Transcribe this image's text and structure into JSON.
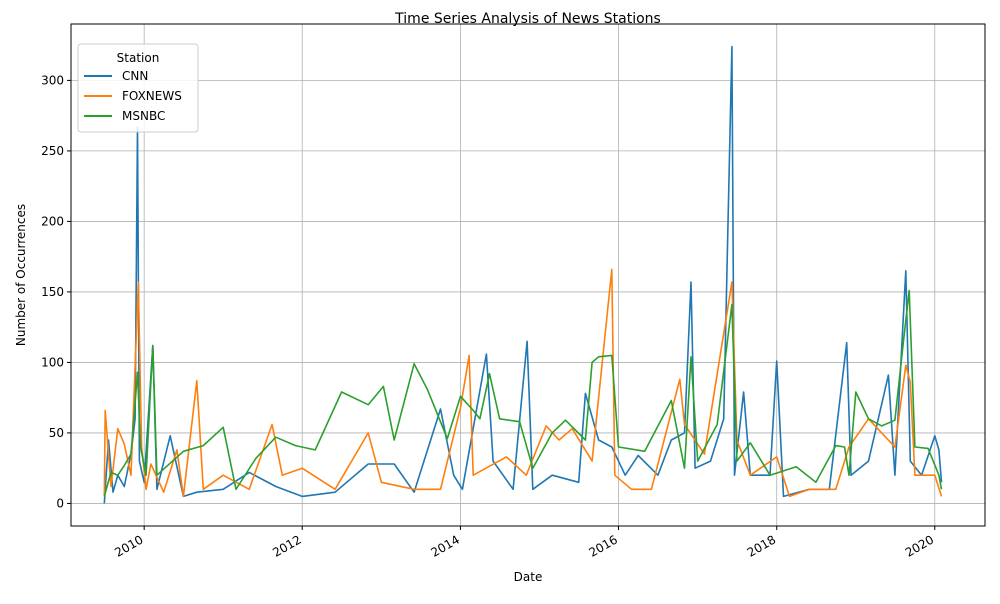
{
  "chart_data": {
    "type": "line",
    "title": "Time Series Analysis of News Stations",
    "xlabel": "Date",
    "ylabel": "Number of Occurrences",
    "x_axis_kind": "date",
    "xlim": [
      "2009-01-28",
      "2020-08-20"
    ],
    "ylim": [
      -16,
      340
    ],
    "x_ticks": [
      "2010",
      "2012",
      "2014",
      "2016",
      "2018",
      "2020"
    ],
    "x_tick_dates": [
      "2010-01-01",
      "2012-01-01",
      "2014-01-01",
      "2016-01-01",
      "2018-01-01",
      "2020-01-01"
    ],
    "y_ticks": [
      0,
      50,
      100,
      150,
      200,
      250,
      300
    ],
    "grid": true,
    "legend": {
      "title": "Station",
      "placement": "top-left"
    },
    "series": [
      {
        "name": "CNN",
        "color": "#1f77b4",
        "points": [
          [
            "2009-07-01",
            0
          ],
          [
            "2009-07-20",
            45
          ],
          [
            "2009-08-10",
            8
          ],
          [
            "2009-09-01",
            20
          ],
          [
            "2009-10-01",
            12
          ],
          [
            "2009-11-01",
            35
          ],
          [
            "2009-11-20",
            60
          ],
          [
            "2009-12-01",
            267
          ],
          [
            "2009-12-10",
            30
          ],
          [
            "2010-01-01",
            15
          ],
          [
            "2010-02-10",
            112
          ],
          [
            "2010-03-01",
            10
          ],
          [
            "2010-05-01",
            48
          ],
          [
            "2010-07-01",
            5
          ],
          [
            "2010-09-01",
            8
          ],
          [
            "2011-01-01",
            10
          ],
          [
            "2011-05-01",
            22
          ],
          [
            "2011-09-01",
            12
          ],
          [
            "2012-01-01",
            5
          ],
          [
            "2012-06-01",
            8
          ],
          [
            "2012-11-01",
            28
          ],
          [
            "2013-03-01",
            28
          ],
          [
            "2013-06-01",
            8
          ],
          [
            "2013-10-01",
            67
          ],
          [
            "2013-12-01",
            20
          ],
          [
            "2014-01-10",
            10
          ],
          [
            "2014-05-01",
            106
          ],
          [
            "2014-06-01",
            30
          ],
          [
            "2014-09-01",
            10
          ],
          [
            "2014-11-05",
            115
          ],
          [
            "2014-12-01",
            10
          ],
          [
            "2015-03-01",
            20
          ],
          [
            "2015-07-01",
            15
          ],
          [
            "2015-08-01",
            78
          ],
          [
            "2015-10-01",
            45
          ],
          [
            "2015-12-01",
            40
          ],
          [
            "2016-02-01",
            20
          ],
          [
            "2016-04-01",
            34
          ],
          [
            "2016-07-01",
            20
          ],
          [
            "2016-09-01",
            45
          ],
          [
            "2016-11-01",
            50
          ],
          [
            "2016-12-01",
            157
          ],
          [
            "2016-12-20",
            25
          ],
          [
            "2017-03-01",
            30
          ],
          [
            "2017-05-01",
            60
          ],
          [
            "2017-06-08",
            324
          ],
          [
            "2017-06-20",
            20
          ],
          [
            "2017-08-01",
            79
          ],
          [
            "2017-09-01",
            20
          ],
          [
            "2017-12-01",
            20
          ],
          [
            "2018-01-01",
            101
          ],
          [
            "2018-02-01",
            5
          ],
          [
            "2018-06-01",
            10
          ],
          [
            "2018-09-01",
            10
          ],
          [
            "2018-11-20",
            114
          ],
          [
            "2018-12-10",
            20
          ],
          [
            "2019-03-01",
            30
          ],
          [
            "2019-06-01",
            91
          ],
          [
            "2019-07-01",
            20
          ],
          [
            "2019-08-20",
            165
          ],
          [
            "2019-09-10",
            30
          ],
          [
            "2019-11-01",
            20
          ],
          [
            "2020-01-01",
            48
          ],
          [
            "2020-01-20",
            38
          ],
          [
            "2020-02-01",
            15
          ]
        ]
      },
      {
        "name": "FOXNEWS",
        "color": "#ff7f0e",
        "points": [
          [
            "2009-07-01",
            5
          ],
          [
            "2009-07-05",
            66
          ],
          [
            "2009-08-01",
            12
          ],
          [
            "2009-09-01",
            53
          ],
          [
            "2009-10-01",
            42
          ],
          [
            "2009-11-01",
            20
          ],
          [
            "2009-12-05",
            157
          ],
          [
            "2009-12-20",
            40
          ],
          [
            "2010-01-10",
            10
          ],
          [
            "2010-02-01",
            28
          ],
          [
            "2010-04-01",
            8
          ],
          [
            "2010-06-01",
            38
          ],
          [
            "2010-07-01",
            5
          ],
          [
            "2010-09-01",
            87
          ],
          [
            "2010-10-01",
            10
          ],
          [
            "2011-01-01",
            20
          ],
          [
            "2011-05-01",
            10
          ],
          [
            "2011-08-15",
            56
          ],
          [
            "2011-10-01",
            20
          ],
          [
            "2012-01-01",
            25
          ],
          [
            "2012-06-01",
            10
          ],
          [
            "2012-11-01",
            50
          ],
          [
            "2013-01-01",
            15
          ],
          [
            "2013-06-01",
            10
          ],
          [
            "2013-10-01",
            10
          ],
          [
            "2014-01-01",
            68
          ],
          [
            "2014-02-10",
            105
          ],
          [
            "2014-03-01",
            20
          ],
          [
            "2014-08-01",
            33
          ],
          [
            "2014-11-01",
            20
          ],
          [
            "2015-02-01",
            55
          ],
          [
            "2015-04-01",
            45
          ],
          [
            "2015-06-01",
            53
          ],
          [
            "2015-09-01",
            30
          ],
          [
            "2015-12-01",
            166
          ],
          [
            "2015-12-15",
            20
          ],
          [
            "2016-03-01",
            10
          ],
          [
            "2016-06-01",
            10
          ],
          [
            "2016-10-10",
            88
          ],
          [
            "2016-11-01",
            56
          ],
          [
            "2017-02-01",
            35
          ],
          [
            "2017-06-08",
            157
          ],
          [
            "2017-07-01",
            45
          ],
          [
            "2017-09-01",
            20
          ],
          [
            "2018-01-01",
            33
          ],
          [
            "2018-03-01",
            5
          ],
          [
            "2018-06-01",
            10
          ],
          [
            "2018-10-01",
            10
          ],
          [
            "2018-12-01",
            40
          ],
          [
            "2019-03-01",
            60
          ],
          [
            "2019-05-01",
            50
          ],
          [
            "2019-07-01",
            40
          ],
          [
            "2019-08-20",
            98
          ],
          [
            "2019-09-10",
            86
          ],
          [
            "2019-10-01",
            20
          ],
          [
            "2020-01-01",
            20
          ],
          [
            "2020-02-01",
            5
          ]
        ]
      },
      {
        "name": "MSNBC",
        "color": "#2ca02c",
        "points": [
          [
            "2009-07-01",
            5
          ],
          [
            "2009-08-01",
            22
          ],
          [
            "2009-09-01",
            20
          ],
          [
            "2009-10-01",
            27
          ],
          [
            "2009-11-01",
            35
          ],
          [
            "2009-12-01",
            93
          ],
          [
            "2009-12-15",
            40
          ],
          [
            "2010-01-10",
            20
          ],
          [
            "2010-02-10",
            112
          ],
          [
            "2010-03-01",
            20
          ],
          [
            "2010-07-01",
            37
          ],
          [
            "2010-10-01",
            41
          ],
          [
            "2011-01-01",
            54
          ],
          [
            "2011-03-01",
            10
          ],
          [
            "2011-06-01",
            32
          ],
          [
            "2011-09-01",
            47
          ],
          [
            "2011-12-01",
            41
          ],
          [
            "2012-03-01",
            38
          ],
          [
            "2012-07-01",
            79
          ],
          [
            "2012-11-01",
            70
          ],
          [
            "2013-01-10",
            83
          ],
          [
            "2013-03-01",
            45
          ],
          [
            "2013-06-01",
            99
          ],
          [
            "2013-08-01",
            81
          ],
          [
            "2013-11-01",
            46
          ],
          [
            "2014-01-01",
            76
          ],
          [
            "2014-03-01",
            66
          ],
          [
            "2014-04-01",
            60
          ],
          [
            "2014-05-15",
            92
          ],
          [
            "2014-07-01",
            60
          ],
          [
            "2014-10-01",
            58
          ],
          [
            "2014-12-01",
            25
          ],
          [
            "2015-03-01",
            50
          ],
          [
            "2015-05-01",
            59
          ],
          [
            "2015-08-01",
            45
          ],
          [
            "2015-09-01",
            100
          ],
          [
            "2015-10-01",
            104
          ],
          [
            "2015-12-01",
            105
          ],
          [
            "2016-01-01",
            40
          ],
          [
            "2016-05-01",
            37
          ],
          [
            "2016-09-01",
            73
          ],
          [
            "2016-11-01",
            25
          ],
          [
            "2016-12-01",
            104
          ],
          [
            "2017-01-01",
            30
          ],
          [
            "2017-04-01",
            56
          ],
          [
            "2017-06-08",
            141
          ],
          [
            "2017-07-01",
            30
          ],
          [
            "2017-09-01",
            43
          ],
          [
            "2017-12-01",
            20
          ],
          [
            "2018-04-01",
            26
          ],
          [
            "2018-07-01",
            15
          ],
          [
            "2018-10-01",
            41
          ],
          [
            "2018-11-10",
            40
          ],
          [
            "2018-12-01",
            20
          ],
          [
            "2019-01-01",
            79
          ],
          [
            "2019-03-01",
            60
          ],
          [
            "2019-05-01",
            55
          ],
          [
            "2019-07-01",
            59
          ],
          [
            "2019-08-10",
            116
          ],
          [
            "2019-09-05",
            151
          ],
          [
            "2019-10-01",
            40
          ],
          [
            "2019-12-01",
            39
          ],
          [
            "2020-01-20",
            20
          ],
          [
            "2020-02-01",
            10
          ]
        ]
      }
    ]
  }
}
